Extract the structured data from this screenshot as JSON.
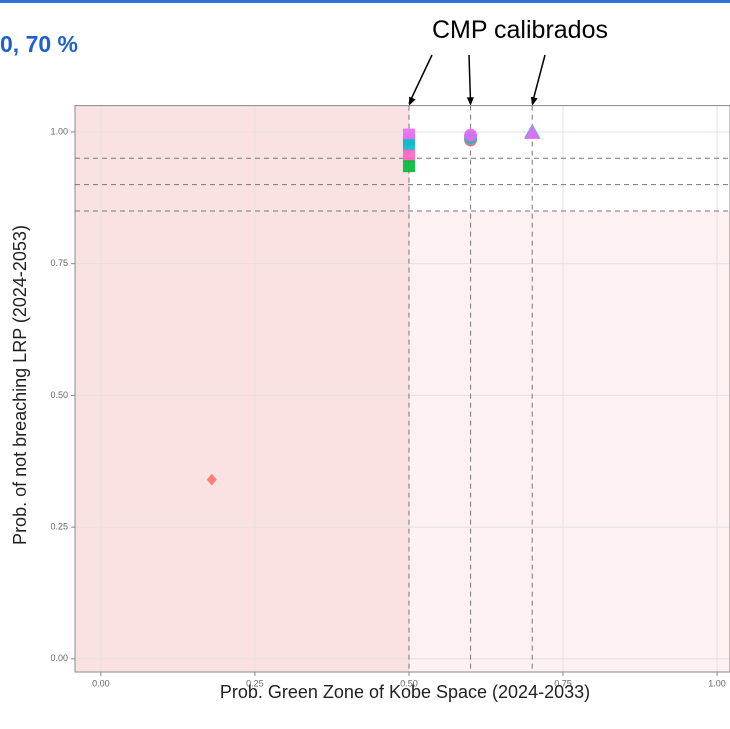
{
  "chart_data": {
    "type": "scatter",
    "title": "0, 70 %",
    "annotation": "CMP calibrados",
    "x_label": "Prob. Green Zone of Kobe Space (2024-2033)",
    "y_label": "Prob. of not breaching LRP (2024-2053)",
    "xlim": [
      -0.042,
      1.021
    ],
    "ylim": [
      -0.025,
      1.05
    ],
    "xticks": [
      {
        "value": 0,
        "label": "0.00"
      },
      {
        "value": 0.25,
        "label": "0.25"
      },
      {
        "value": 0.5,
        "label": "0.50"
      },
      {
        "value": 0.75,
        "label": "0.75"
      },
      {
        "value": 1,
        "label": "1.00"
      }
    ],
    "yticks": [
      {
        "value": 0,
        "label": "0.00"
      },
      {
        "value": 0.25,
        "label": "0.25"
      },
      {
        "value": 0.5,
        "label": "0.50"
      },
      {
        "value": 0.75,
        "label": "0.75"
      },
      {
        "value": 1,
        "label": "1.00"
      }
    ],
    "grid": true,
    "hlines": [
      0.95,
      0.9,
      0.85
    ],
    "vlines": [
      0.5,
      0.6,
      0.7
    ],
    "series": [
      {
        "color": "#f8766d",
        "marker": "diamond",
        "x": [
          0.18
        ],
        "y": [
          0.34
        ]
      },
      {
        "color": "#e76bf3",
        "marker": "square",
        "x": [
          0.5,
          0.5
        ],
        "y": [
          0.995,
          0.985
        ]
      },
      {
        "color": "#00bfc4",
        "marker": "square",
        "x": [
          0.5
        ],
        "y": [
          0.975
        ]
      },
      {
        "color": "#ff61c3",
        "marker": "square",
        "x": [
          0.5
        ],
        "y": [
          0.955
        ]
      },
      {
        "color": "#00ba38",
        "marker": "square",
        "x": [
          0.5
        ],
        "y": [
          0.935
        ]
      },
      {
        "color": "#c9747a",
        "marker": "circle",
        "x": [
          0.6
        ],
        "y": [
          0.985
        ]
      },
      {
        "color": "#00bfc4",
        "marker": "circle",
        "x": [
          0.6
        ],
        "y": [
          0.99
        ]
      },
      {
        "color": "#e76bf3",
        "marker": "circle",
        "x": [
          0.6
        ],
        "y": [
          0.994
        ]
      },
      {
        "color": "#00bfc4",
        "marker": "triangle",
        "x": [
          0.7
        ],
        "y": [
          1.0
        ]
      },
      {
        "color": "#e76bf3",
        "marker": "triangle",
        "x": [
          0.7
        ],
        "y": [
          0.998
        ]
      }
    ]
  }
}
